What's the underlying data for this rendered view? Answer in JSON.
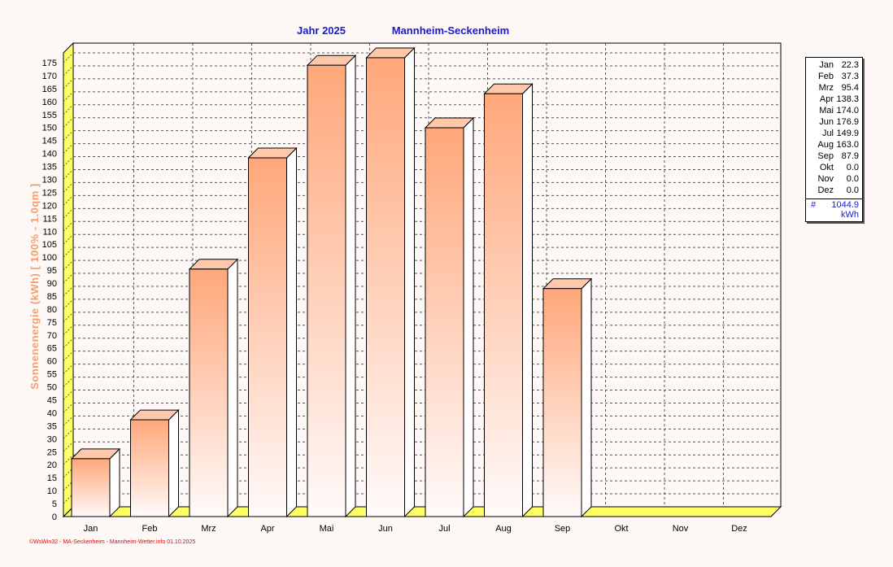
{
  "header": {
    "title_year": "Jahr  2025",
    "title_location": "Mannheim-Seckenheim"
  },
  "footer": {
    "credit": "©WsWin32 - MA-Seckenheim - Mannheim-Wetter.info  01.10.2025"
  },
  "legend": {
    "total_symbol": "#",
    "total_value": "1044.9",
    "total_unit": "kWh"
  },
  "colors": {
    "bar_top": "#ffa77a",
    "bar_bottom": "#fffafa",
    "floor": "#ffff66",
    "title": "#1a1acc",
    "ylabel": "#f0a070",
    "footer": "#cc1111",
    "background": "#fdf8f5"
  },
  "chart_data": {
    "type": "bar",
    "categories": [
      "Jan",
      "Feb",
      "Mrz",
      "Apr",
      "Mai",
      "Jun",
      "Jul",
      "Aug",
      "Sep",
      "Okt",
      "Nov",
      "Dez"
    ],
    "values": [
      22.3,
      37.3,
      95.4,
      138.3,
      174.0,
      176.9,
      149.9,
      163.0,
      87.9,
      0.0,
      0.0,
      0.0
    ],
    "value_labels": [
      "22.3",
      "37.3",
      "95.4",
      "138.3",
      "174.0",
      "176.9",
      "149.9",
      "163.0",
      "87.9",
      "0.0",
      "0.0",
      "0.0"
    ],
    "ylabel": "Sonnenenergie  (kWh)    [ 100% - 1.0qm ]",
    "ylim": [
      0,
      175
    ],
    "ytick_step": 5,
    "grid": true,
    "legend_position": "right"
  }
}
